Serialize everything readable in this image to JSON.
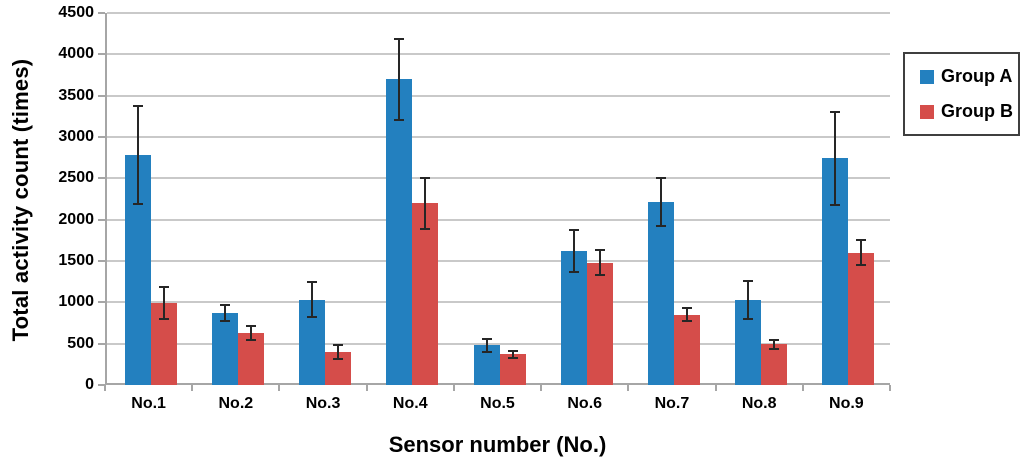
{
  "chart_data": {
    "type": "bar",
    "title": "",
    "xlabel": "Sensor number (No.)",
    "ylabel": "Total activity count (times)",
    "categories": [
      "No.1",
      "No.2",
      "No.3",
      "No.4",
      "No.5",
      "No.6",
      "No.7",
      "No.8",
      "No.9"
    ],
    "series": [
      {
        "name": "Group A",
        "color": "#2380bf",
        "values": [
          2780,
          870,
          1030,
          3700,
          480,
          1620,
          2210,
          1030,
          2740
        ],
        "errors": [
          590,
          100,
          210,
          490,
          80,
          250,
          290,
          230,
          560
        ]
      },
      {
        "name": "Group B",
        "color": "#d54d4a",
        "values": [
          990,
          630,
          400,
          2200,
          370,
          1480,
          850,
          490,
          1600
        ],
        "errors": [
          190,
          80,
          80,
          310,
          40,
          150,
          80,
          50,
          150
        ]
      }
    ],
    "ylim": [
      0,
      4500
    ],
    "ytick_step": 500,
    "grid": true,
    "legend_position": "top-right",
    "error_bar_color": "#262626",
    "gridline_color": "#c9c9c9",
    "axis_color": "#a6a6a6"
  }
}
